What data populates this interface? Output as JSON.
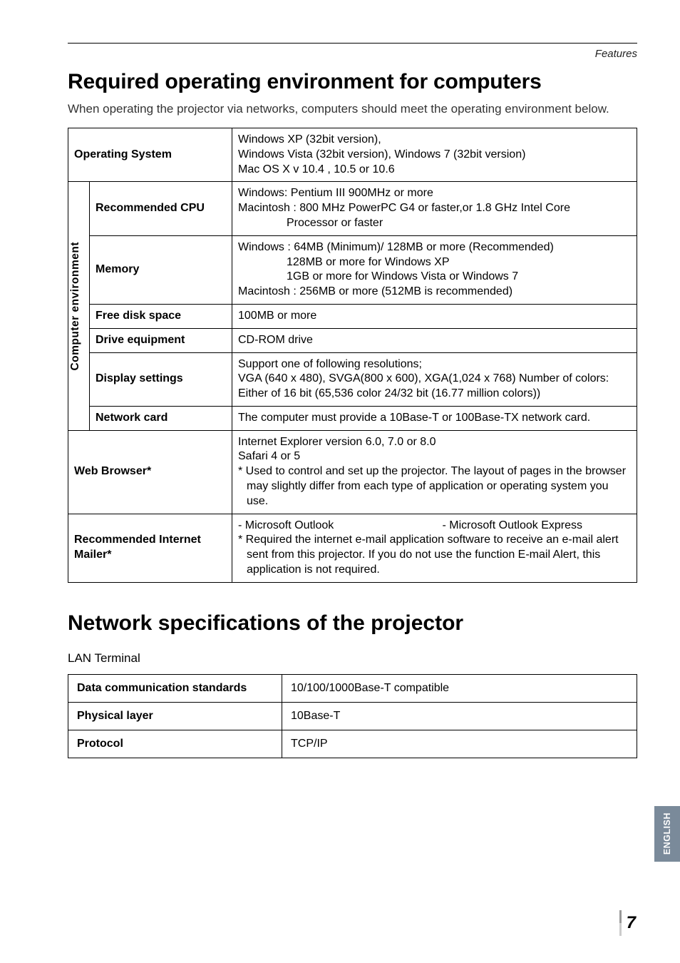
{
  "header": {
    "section_label": "Features"
  },
  "section1": {
    "title": "Required operating environment for computers",
    "intro": "When operating the projector via networks, computers should meet the operating environment below."
  },
  "req_table": {
    "vertical_label": "Computer environment",
    "rows": {
      "os": {
        "label": "Operating System",
        "value_l1": "Windows XP (32bit version),",
        "value_l2": "Windows Vista (32bit version), Windows 7 (32bit version)",
        "value_l3": "Mac OS X v 10.4 , 10.5 or 10.6"
      },
      "cpu": {
        "label": "Recommended CPU",
        "value_l1": "Windows: Pentium III 900MHz or more",
        "value_l2": "Macintosh : 800 MHz PowerPC G4 or faster,or 1.8 GHz Intel Core",
        "value_l3": "Processor or faster"
      },
      "memory": {
        "label": "Memory",
        "value_l1": "Windows : 64MB (Minimum)/ 128MB or more (Recommended)",
        "value_l2": "128MB or more for Windows XP",
        "value_l3": "1GB or more for Windows Vista or Windows 7",
        "value_l4": "Macintosh : 256MB or more (512MB is recommended)"
      },
      "disk": {
        "label": "Free disk space",
        "value": "100MB or more"
      },
      "drive": {
        "label": "Drive equipment",
        "value": "CD-ROM drive"
      },
      "display": {
        "label": "Display settings",
        "value_l1": "Support one of following resolutions;",
        "value_l2": "VGA (640 x 480), SVGA(800 x 600), XGA(1,024 x 768) Number of colors: Either of 16 bit (65,536 color 24/32 bit (16.77 million colors))"
      },
      "network": {
        "label": "Network card",
        "value": "The computer must provide a 10Base-T or 100Base-TX network card."
      },
      "browser": {
        "label": "Web Browser*",
        "value_l1": "Internet Explorer version 6.0, 7.0 or 8.0",
        "value_l2": "Safari  4 or 5",
        "value_l3": "* Used to control and set up the projector. The layout of pages in the browser may slightly differ from each type of application or operating system you use."
      },
      "mailer": {
        "label": "Recommended Internet Mailer*",
        "value_l1a": "- Microsoft Outlook",
        "value_l1b": "- Microsoft Outlook Express",
        "value_l2": "* Required the internet e-mail application software to receive an e-mail alert sent from this projector. If you do not use the function E-mail Alert, this application is not required."
      }
    }
  },
  "section2": {
    "title": "Network specifications of the projector",
    "subhead": "LAN Terminal"
  },
  "spec_table": {
    "rows": {
      "dcs": {
        "label": "Data communication standards",
        "value": "10/100/1000Base-T compatible"
      },
      "phy": {
        "label": "Physical layer",
        "value": "10Base-T"
      },
      "proto": {
        "label": "Protocol",
        "value": "TCP/IP"
      }
    }
  },
  "side_tab": "ENGLISH",
  "page_number": "7"
}
